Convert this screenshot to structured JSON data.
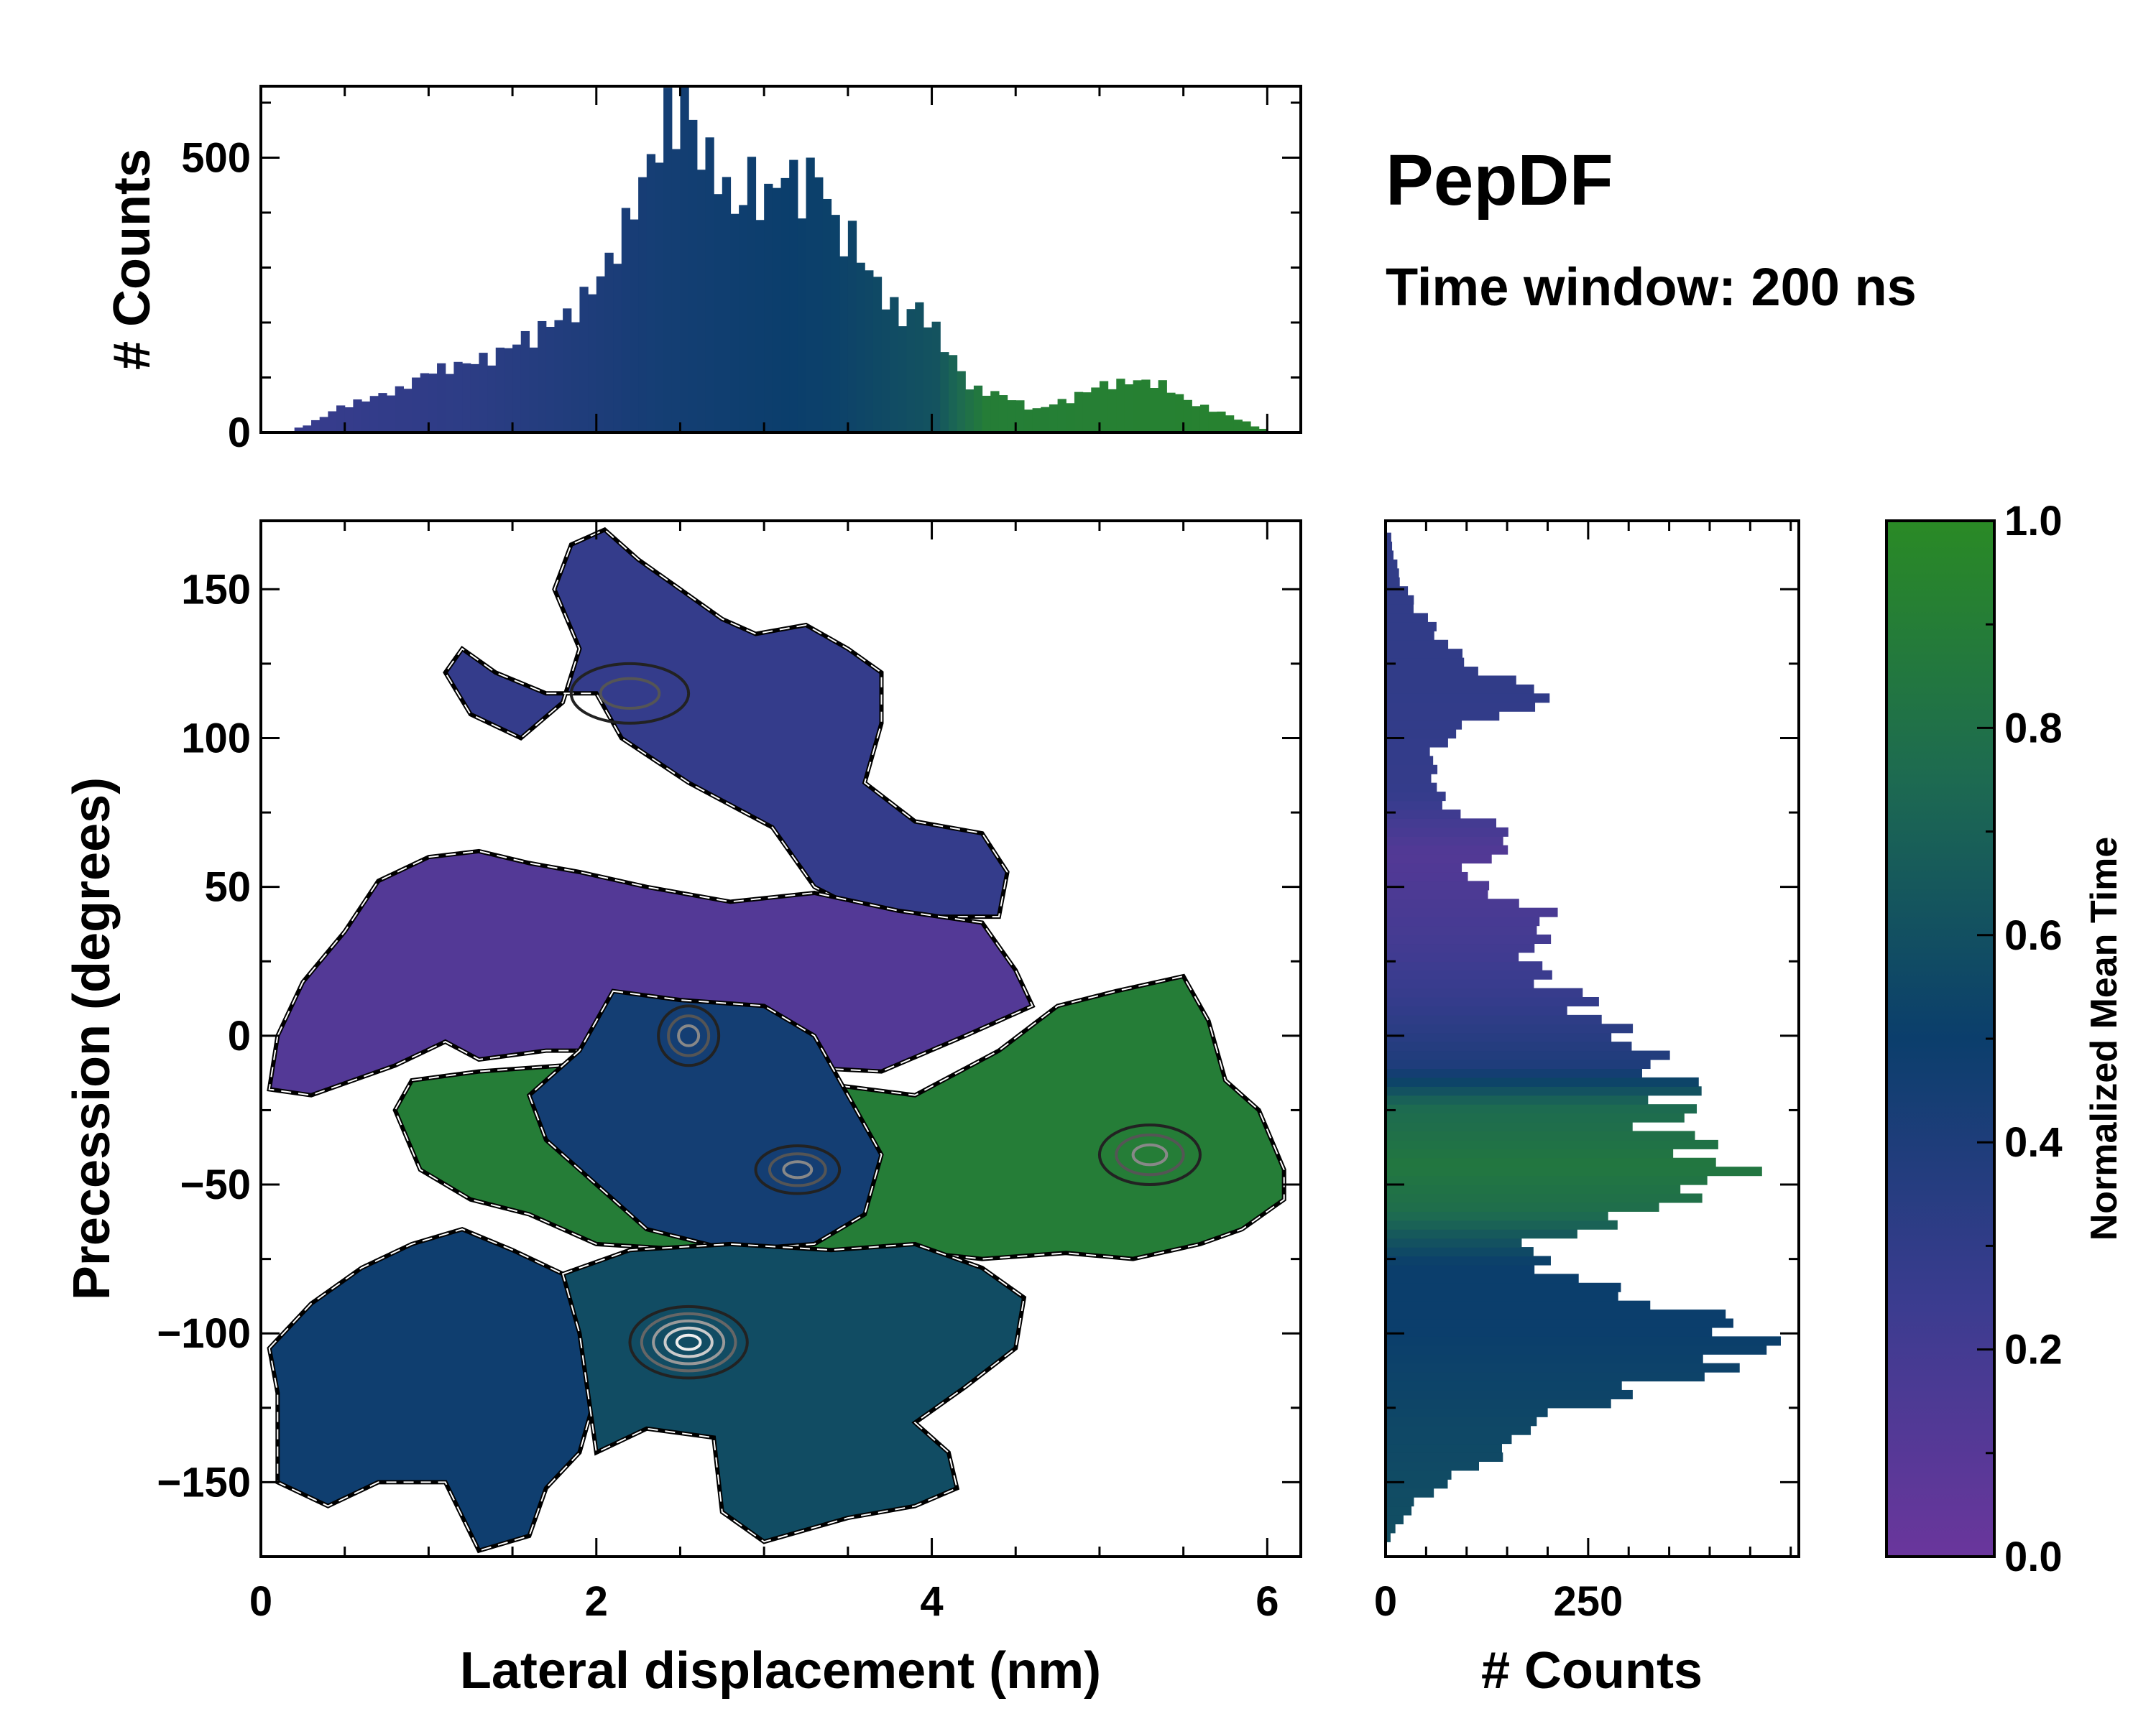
{
  "chart_data": [
    {
      "id": "top-histogram",
      "type": "bar",
      "title": "",
      "xlabel": "",
      "ylabel": "# Counts",
      "xlim": [
        0,
        6.2
      ],
      "ylim": [
        0,
        630
      ],
      "yticks": [
        0,
        500
      ],
      "ytick_labels": [
        "0",
        "500"
      ],
      "bin_width": 0.05,
      "color_by": "normalized_mean_time",
      "bins": [
        {
          "x": 0.15,
          "v": 2
        },
        {
          "x": 0.3,
          "v": 20
        },
        {
          "x": 0.45,
          "v": 45
        },
        {
          "x": 0.6,
          "v": 58
        },
        {
          "x": 0.8,
          "v": 75
        },
        {
          "x": 1.0,
          "v": 110
        },
        {
          "x": 1.2,
          "v": 120
        },
        {
          "x": 1.4,
          "v": 140
        },
        {
          "x": 1.6,
          "v": 175
        },
        {
          "x": 1.8,
          "v": 205
        },
        {
          "x": 2.0,
          "v": 270
        },
        {
          "x": 2.1,
          "v": 330
        },
        {
          "x": 2.2,
          "v": 400
        },
        {
          "x": 2.3,
          "v": 470
        },
        {
          "x": 2.4,
          "v": 560
        },
        {
          "x": 2.45,
          "v": 545
        },
        {
          "x": 2.5,
          "v": 580
        },
        {
          "x": 2.6,
          "v": 490
        },
        {
          "x": 2.7,
          "v": 470
        },
        {
          "x": 2.8,
          "v": 380
        },
        {
          "x": 2.9,
          "v": 450
        },
        {
          "x": 3.0,
          "v": 410
        },
        {
          "x": 3.1,
          "v": 455
        },
        {
          "x": 3.2,
          "v": 440
        },
        {
          "x": 3.3,
          "v": 460
        },
        {
          "x": 3.4,
          "v": 360
        },
        {
          "x": 3.5,
          "v": 345
        },
        {
          "x": 3.6,
          "v": 280
        },
        {
          "x": 3.7,
          "v": 240
        },
        {
          "x": 3.8,
          "v": 200
        },
        {
          "x": 3.9,
          "v": 220
        },
        {
          "x": 4.0,
          "v": 180
        },
        {
          "x": 4.1,
          "v": 130
        },
        {
          "x": 4.2,
          "v": 80
        },
        {
          "x": 4.4,
          "v": 65
        },
        {
          "x": 4.6,
          "v": 40
        },
        {
          "x": 4.8,
          "v": 60
        },
        {
          "x": 5.0,
          "v": 85
        },
        {
          "x": 5.2,
          "v": 90
        },
        {
          "x": 5.35,
          "v": 85
        },
        {
          "x": 5.5,
          "v": 55
        },
        {
          "x": 5.7,
          "v": 35
        },
        {
          "x": 5.85,
          "v": 18
        },
        {
          "x": 5.95,
          "v": 6
        }
      ]
    },
    {
      "id": "main-heatmap",
      "type": "heatmap",
      "title": "",
      "xlabel": "Lateral displacement (nm)",
      "ylabel": "Precession (degrees)",
      "xlim": [
        0,
        6.2
      ],
      "ylim": [
        -175,
        173
      ],
      "xticks": [
        0,
        2,
        4,
        6
      ],
      "xtick_labels": [
        "0",
        "2",
        "4",
        "6"
      ],
      "yticks": [
        -150,
        -100,
        -50,
        0,
        50,
        100,
        150
      ],
      "ytick_labels": [
        "−150",
        "−100",
        "−50",
        "0",
        "50",
        "100",
        "150"
      ],
      "color_by": "normalized_mean_time",
      "regions": [
        {
          "name": "upper-lobe",
          "t": 0.28,
          "outline": [
            [
              1.75,
              150
            ],
            [
              1.85,
              165
            ],
            [
              2.05,
              170
            ],
            [
              2.25,
              160
            ],
            [
              2.5,
              150
            ],
            [
              2.75,
              140
            ],
            [
              2.95,
              135
            ],
            [
              3.25,
              138
            ],
            [
              3.5,
              130
            ],
            [
              3.7,
              122
            ],
            [
              3.7,
              105
            ],
            [
              3.6,
              85
            ],
            [
              3.9,
              72
            ],
            [
              4.3,
              68
            ],
            [
              4.45,
              55
            ],
            [
              4.4,
              40
            ],
            [
              3.65,
              40
            ],
            [
              3.3,
              50
            ],
            [
              3.05,
              70
            ],
            [
              2.55,
              85
            ],
            [
              2.15,
              100
            ],
            [
              2.0,
              115
            ],
            [
              1.7,
              115
            ],
            [
              1.4,
              122
            ],
            [
              1.2,
              130
            ],
            [
              1.1,
              122
            ],
            [
              1.25,
              108
            ],
            [
              1.55,
              100
            ],
            [
              1.8,
              112
            ],
            [
              1.9,
              130
            ]
          ]
        },
        {
          "name": "middle-band",
          "t": 0.12,
          "outline": [
            [
              0.1,
              0
            ],
            [
              0.25,
              18
            ],
            [
              0.5,
              35
            ],
            [
              0.7,
              52
            ],
            [
              1.0,
              60
            ],
            [
              1.3,
              62
            ],
            [
              1.6,
              58
            ],
            [
              1.9,
              55
            ],
            [
              2.3,
              50
            ],
            [
              2.8,
              45
            ],
            [
              3.3,
              48
            ],
            [
              3.8,
              42
            ],
            [
              4.3,
              38
            ],
            [
              4.5,
              22
            ],
            [
              4.6,
              10
            ],
            [
              4.2,
              0
            ],
            [
              3.7,
              -12
            ],
            [
              3.0,
              -10
            ],
            [
              2.3,
              -5
            ],
            [
              1.7,
              -5
            ],
            [
              1.3,
              -8
            ],
            [
              1.1,
              -2
            ],
            [
              0.8,
              -10
            ],
            [
              0.3,
              -20
            ],
            [
              0.05,
              -18
            ]
          ]
        },
        {
          "name": "green-band",
          "t": 0.9,
          "outline": [
            [
              0.9,
              -15
            ],
            [
              1.3,
              -12
            ],
            [
              1.8,
              -10
            ],
            [
              2.4,
              -8
            ],
            [
              3.2,
              -15
            ],
            [
              3.9,
              -20
            ],
            [
              4.4,
              -5
            ],
            [
              4.75,
              10
            ],
            [
              5.1,
              15
            ],
            [
              5.5,
              20
            ],
            [
              5.65,
              5
            ],
            [
              5.75,
              -15
            ],
            [
              5.95,
              -25
            ],
            [
              6.1,
              -45
            ],
            [
              6.1,
              -55
            ],
            [
              5.85,
              -65
            ],
            [
              5.6,
              -70
            ],
            [
              5.2,
              -75
            ],
            [
              4.8,
              -73
            ],
            [
              4.3,
              -75
            ],
            [
              3.8,
              -72
            ],
            [
              3.2,
              -72
            ],
            [
              2.6,
              -72
            ],
            [
              2.0,
              -70
            ],
            [
              1.6,
              -60
            ],
            [
              1.25,
              -55
            ],
            [
              0.95,
              -45
            ],
            [
              0.8,
              -25
            ]
          ]
        },
        {
          "name": "center-blend",
          "t": 0.45,
          "outline": [
            [
              2.1,
              15
            ],
            [
              2.5,
              12
            ],
            [
              3.0,
              10
            ],
            [
              3.3,
              0
            ],
            [
              3.5,
              -20
            ],
            [
              3.7,
              -40
            ],
            [
              3.6,
              -60
            ],
            [
              3.3,
              -70
            ],
            [
              2.8,
              -72
            ],
            [
              2.3,
              -65
            ],
            [
              2.0,
              -50
            ],
            [
              1.7,
              -35
            ],
            [
              1.6,
              -20
            ],
            [
              1.9,
              -5
            ],
            [
              2.0,
              5
            ]
          ]
        },
        {
          "name": "lower-left-lobe",
          "t": 0.48,
          "outline": [
            [
              0.05,
              -105
            ],
            [
              0.3,
              -90
            ],
            [
              0.6,
              -78
            ],
            [
              0.9,
              -70
            ],
            [
              1.2,
              -65
            ],
            [
              1.5,
              -72
            ],
            [
              1.8,
              -80
            ],
            [
              2.0,
              -95
            ],
            [
              2.0,
              -120
            ],
            [
              1.9,
              -140
            ],
            [
              1.7,
              -152
            ],
            [
              1.6,
              -168
            ],
            [
              1.3,
              -173
            ],
            [
              1.1,
              -150
            ],
            [
              0.7,
              -150
            ],
            [
              0.4,
              -158
            ],
            [
              0.1,
              -150
            ],
            [
              0.1,
              -120
            ]
          ]
        },
        {
          "name": "lower-center-lobe",
          "t": 0.58,
          "outline": [
            [
              1.8,
              -80
            ],
            [
              2.2,
              -72
            ],
            [
              2.8,
              -70
            ],
            [
              3.4,
              -72
            ],
            [
              3.9,
              -70
            ],
            [
              4.3,
              -78
            ],
            [
              4.55,
              -88
            ],
            [
              4.5,
              -105
            ],
            [
              4.2,
              -118
            ],
            [
              3.9,
              -130
            ],
            [
              4.1,
              -140
            ],
            [
              4.15,
              -152
            ],
            [
              3.9,
              -158
            ],
            [
              3.5,
              -162
            ],
            [
              3.0,
              -170
            ],
            [
              2.75,
              -160
            ],
            [
              2.7,
              -135
            ],
            [
              2.3,
              -132
            ],
            [
              2.0,
              -140
            ],
            [
              1.95,
              -120
            ],
            [
              1.9,
              -100
            ]
          ]
        }
      ],
      "contours": [
        {
          "name": "hotspot-lower",
          "x": 2.55,
          "y": -103,
          "rx": 0.35,
          "ry": 12,
          "level": "high"
        },
        {
          "name": "hotspot-mid",
          "x": 2.55,
          "y": 0,
          "rx": 0.18,
          "ry": 10,
          "level": "mid"
        },
        {
          "name": "hotspot-center",
          "x": 3.2,
          "y": -45,
          "rx": 0.25,
          "ry": 8,
          "level": "mid"
        },
        {
          "name": "hotspot-right",
          "x": 5.3,
          "y": -40,
          "rx": 0.3,
          "ry": 10,
          "level": "mid"
        },
        {
          "name": "hotspot-top",
          "x": 2.2,
          "y": 115,
          "rx": 0.35,
          "ry": 10,
          "level": "low"
        }
      ]
    },
    {
      "id": "right-histogram",
      "type": "bar",
      "orientation": "horizontal",
      "title": "",
      "xlabel": "# Counts",
      "ylabel": "",
      "xlim": [
        0,
        510
      ],
      "ylim": [
        -175,
        173
      ],
      "xticks": [
        0,
        250
      ],
      "xtick_labels": [
        "0",
        "250"
      ],
      "bin_width": 3,
      "color_by": "normalized_mean_time",
      "bins": [
        {
          "y": 168,
          "v": 5
        },
        {
          "y": 160,
          "v": 10
        },
        {
          "y": 150,
          "v": 20
        },
        {
          "y": 142,
          "v": 40
        },
        {
          "y": 135,
          "v": 60
        },
        {
          "y": 128,
          "v": 80
        },
        {
          "y": 120,
          "v": 120
        },
        {
          "y": 115,
          "v": 180
        },
        {
          "y": 112,
          "v": 215
        },
        {
          "y": 108,
          "v": 150
        },
        {
          "y": 100,
          "v": 80
        },
        {
          "y": 92,
          "v": 55
        },
        {
          "y": 84,
          "v": 60
        },
        {
          "y": 76,
          "v": 70
        },
        {
          "y": 68,
          "v": 140
        },
        {
          "y": 64,
          "v": 160
        },
        {
          "y": 60,
          "v": 130
        },
        {
          "y": 52,
          "v": 95
        },
        {
          "y": 44,
          "v": 150
        },
        {
          "y": 40,
          "v": 190
        },
        {
          "y": 36,
          "v": 195
        },
        {
          "y": 30,
          "v": 180
        },
        {
          "y": 22,
          "v": 175
        },
        {
          "y": 16,
          "v": 210
        },
        {
          "y": 10,
          "v": 240
        },
        {
          "y": 4,
          "v": 255
        },
        {
          "y": 0,
          "v": 280
        },
        {
          "y": -4,
          "v": 300
        },
        {
          "y": -10,
          "v": 320
        },
        {
          "y": -16,
          "v": 340
        },
        {
          "y": -20,
          "v": 370
        },
        {
          "y": -24,
          "v": 360
        },
        {
          "y": -30,
          "v": 335
        },
        {
          "y": -36,
          "v": 365
        },
        {
          "y": -42,
          "v": 380
        },
        {
          "y": -46,
          "v": 420
        },
        {
          "y": -50,
          "v": 400
        },
        {
          "y": -56,
          "v": 350
        },
        {
          "y": -62,
          "v": 300
        },
        {
          "y": -68,
          "v": 220
        },
        {
          "y": -74,
          "v": 170
        },
        {
          "y": -80,
          "v": 200
        },
        {
          "y": -86,
          "v": 260
        },
        {
          "y": -92,
          "v": 330
        },
        {
          "y": -98,
          "v": 420
        },
        {
          "y": -104,
          "v": 440
        },
        {
          "y": -110,
          "v": 445
        },
        {
          "y": -116,
          "v": 360
        },
        {
          "y": -122,
          "v": 290
        },
        {
          "y": -128,
          "v": 210
        },
        {
          "y": -134,
          "v": 160
        },
        {
          "y": -140,
          "v": 150
        },
        {
          "y": -146,
          "v": 110
        },
        {
          "y": -152,
          "v": 70
        },
        {
          "y": -158,
          "v": 40
        },
        {
          "y": -164,
          "v": 20
        },
        {
          "y": -170,
          "v": 6
        }
      ]
    },
    {
      "id": "colorbar",
      "type": "colorbar",
      "label": "Normalized Mean Time",
      "range": [
        0.0,
        1.0
      ],
      "ticks": [
        0.0,
        0.2,
        0.4,
        0.6,
        0.8,
        1.0
      ],
      "tick_labels": [
        "0.0",
        "0.2",
        "0.4",
        "0.6",
        "0.8",
        "1.0"
      ],
      "colormap_stops": [
        {
          "t": 0.0,
          "color": "#6a369c"
        },
        {
          "t": 0.25,
          "color": "#3a3c8f"
        },
        {
          "t": 0.5,
          "color": "#0b3e6c"
        },
        {
          "t": 0.75,
          "color": "#1d6a51"
        },
        {
          "t": 1.0,
          "color": "#2a8a25"
        }
      ]
    }
  ],
  "annotations": {
    "title": "PepDF",
    "subtitle": "Time window: 200 ns"
  }
}
